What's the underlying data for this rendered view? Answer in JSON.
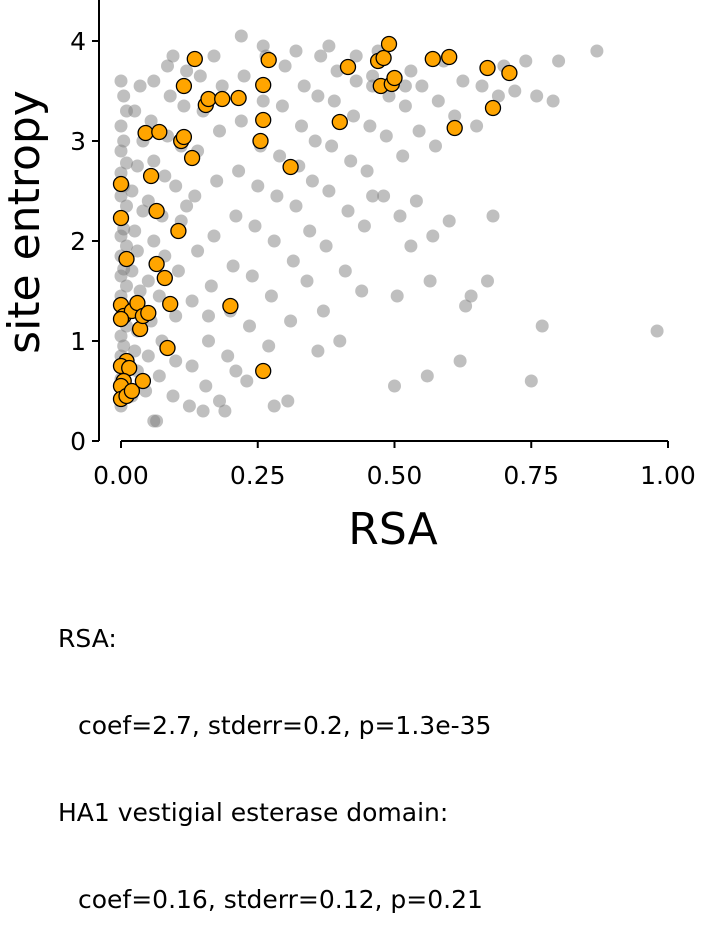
{
  "chart_data": {
    "type": "scatter",
    "xlabel": "RSA",
    "ylabel": "site entropy",
    "xlim": [
      -0.03,
      1.0
    ],
    "ylim": [
      0,
      4.45
    ],
    "xticks": [
      "0.00",
      "0.25",
      "0.50",
      "0.75",
      "1.00"
    ],
    "yticks": [
      "0",
      "1",
      "2",
      "3",
      "4"
    ],
    "grid": false,
    "legend": "none",
    "colors": {
      "gray": "#808080",
      "orange": "#FFA500",
      "orange_edge": "#000000"
    },
    "series": [
      {
        "color": "gray",
        "points": [
          [
            0.0,
            0.35
          ],
          [
            0.005,
            0.5
          ],
          [
            0.0,
            0.62
          ],
          [
            0.01,
            0.75
          ],
          [
            0.0,
            0.85
          ],
          [
            0.005,
            0.95
          ],
          [
            0.0,
            1.05
          ],
          [
            0.01,
            1.15
          ],
          [
            0.0,
            1.25
          ],
          [
            0.005,
            1.35
          ],
          [
            0.0,
            1.45
          ],
          [
            0.01,
            1.55
          ],
          [
            0.0,
            1.65
          ],
          [
            0.005,
            1.72
          ],
          [
            0.0,
            1.85
          ],
          [
            0.01,
            1.95
          ],
          [
            0.0,
            2.05
          ],
          [
            0.005,
            2.12
          ],
          [
            0.0,
            2.22
          ],
          [
            0.01,
            2.35
          ],
          [
            0.0,
            2.45
          ],
          [
            0.005,
            2.55
          ],
          [
            0.0,
            2.68
          ],
          [
            0.01,
            2.78
          ],
          [
            0.0,
            2.9
          ],
          [
            0.005,
            3.0
          ],
          [
            0.0,
            3.15
          ],
          [
            0.01,
            3.3
          ],
          [
            0.005,
            3.45
          ],
          [
            0.0,
            3.6
          ],
          [
            0.02,
            0.45
          ],
          [
            0.03,
            0.7
          ],
          [
            0.025,
            0.9
          ],
          [
            0.03,
            1.1
          ],
          [
            0.02,
            1.3
          ],
          [
            0.035,
            1.5
          ],
          [
            0.02,
            1.7
          ],
          [
            0.03,
            1.9
          ],
          [
            0.025,
            2.1
          ],
          [
            0.04,
            2.3
          ],
          [
            0.02,
            2.5
          ],
          [
            0.03,
            2.75
          ],
          [
            0.04,
            3.0
          ],
          [
            0.025,
            3.3
          ],
          [
            0.035,
            3.55
          ],
          [
            0.045,
            0.5
          ],
          [
            0.05,
            0.85
          ],
          [
            0.055,
            1.2
          ],
          [
            0.05,
            1.6
          ],
          [
            0.06,
            2.0
          ],
          [
            0.05,
            2.4
          ],
          [
            0.06,
            2.8
          ],
          [
            0.055,
            3.2
          ],
          [
            0.06,
            3.6
          ],
          [
            0.065,
            0.2
          ],
          [
            0.07,
            0.65
          ],
          [
            0.075,
            1.0
          ],
          [
            0.07,
            1.45
          ],
          [
            0.08,
            1.85
          ],
          [
            0.075,
            2.25
          ],
          [
            0.08,
            2.65
          ],
          [
            0.085,
            3.05
          ],
          [
            0.09,
            3.45
          ],
          [
            0.085,
            3.75
          ],
          [
            0.095,
            0.45
          ],
          [
            0.1,
            0.8
          ],
          [
            0.1,
            1.25
          ],
          [
            0.105,
            1.7
          ],
          [
            0.11,
            2.2
          ],
          [
            0.1,
            2.55
          ],
          [
            0.11,
            2.95
          ],
          [
            0.115,
            3.35
          ],
          [
            0.12,
            3.7
          ],
          [
            0.125,
            0.35
          ],
          [
            0.13,
            0.75
          ],
          [
            0.13,
            1.4
          ],
          [
            0.14,
            1.9
          ],
          [
            0.135,
            2.45
          ],
          [
            0.14,
            2.9
          ],
          [
            0.15,
            3.3
          ],
          [
            0.145,
            3.65
          ],
          [
            0.155,
            0.55
          ],
          [
            0.16,
            1.0
          ],
          [
            0.165,
            1.55
          ],
          [
            0.17,
            2.05
          ],
          [
            0.175,
            2.6
          ],
          [
            0.18,
            3.1
          ],
          [
            0.185,
            3.55
          ],
          [
            0.19,
            0.3
          ],
          [
            0.195,
            0.85
          ],
          [
            0.2,
            1.3
          ],
          [
            0.205,
            1.75
          ],
          [
            0.21,
            2.25
          ],
          [
            0.215,
            2.7
          ],
          [
            0.22,
            3.2
          ],
          [
            0.225,
            3.65
          ],
          [
            0.23,
            0.6
          ],
          [
            0.235,
            1.15
          ],
          [
            0.24,
            1.65
          ],
          [
            0.245,
            2.15
          ],
          [
            0.25,
            2.55
          ],
          [
            0.255,
            2.95
          ],
          [
            0.26,
            3.4
          ],
          [
            0.265,
            3.85
          ],
          [
            0.27,
            0.95
          ],
          [
            0.275,
            1.45
          ],
          [
            0.28,
            2.0
          ],
          [
            0.285,
            2.45
          ],
          [
            0.29,
            2.85
          ],
          [
            0.295,
            3.35
          ],
          [
            0.3,
            3.75
          ],
          [
            0.305,
            0.4
          ],
          [
            0.31,
            1.2
          ],
          [
            0.315,
            1.8
          ],
          [
            0.32,
            2.35
          ],
          [
            0.325,
            2.75
          ],
          [
            0.33,
            3.15
          ],
          [
            0.335,
            3.55
          ],
          [
            0.34,
            1.6
          ],
          [
            0.345,
            2.1
          ],
          [
            0.35,
            2.6
          ],
          [
            0.355,
            3.0
          ],
          [
            0.36,
            3.45
          ],
          [
            0.365,
            3.85
          ],
          [
            0.37,
            1.3
          ],
          [
            0.375,
            1.95
          ],
          [
            0.38,
            2.5
          ],
          [
            0.385,
            2.95
          ],
          [
            0.39,
            3.4
          ],
          [
            0.395,
            3.7
          ],
          [
            0.4,
            1.0
          ],
          [
            0.41,
            1.7
          ],
          [
            0.415,
            2.3
          ],
          [
            0.42,
            2.8
          ],
          [
            0.425,
            3.25
          ],
          [
            0.43,
            3.6
          ],
          [
            0.44,
            1.5
          ],
          [
            0.445,
            2.15
          ],
          [
            0.45,
            2.7
          ],
          [
            0.455,
            3.15
          ],
          [
            0.46,
            3.55
          ],
          [
            0.47,
            3.9
          ],
          [
            0.48,
            2.45
          ],
          [
            0.485,
            3.05
          ],
          [
            0.49,
            3.45
          ],
          [
            0.5,
            0.55
          ],
          [
            0.505,
            1.45
          ],
          [
            0.51,
            2.25
          ],
          [
            0.515,
            2.85
          ],
          [
            0.52,
            3.35
          ],
          [
            0.53,
            3.7
          ],
          [
            0.54,
            2.4
          ],
          [
            0.545,
            3.1
          ],
          [
            0.55,
            3.55
          ],
          [
            0.56,
            0.65
          ],
          [
            0.565,
            1.6
          ],
          [
            0.57,
            2.05
          ],
          [
            0.575,
            2.95
          ],
          [
            0.58,
            3.4
          ],
          [
            0.59,
            3.8
          ],
          [
            0.6,
            2.2
          ],
          [
            0.61,
            3.25
          ],
          [
            0.62,
            0.8
          ],
          [
            0.625,
            3.6
          ],
          [
            0.64,
            1.45
          ],
          [
            0.65,
            3.15
          ],
          [
            0.66,
            3.55
          ],
          [
            0.67,
            1.6
          ],
          [
            0.68,
            2.25
          ],
          [
            0.69,
            3.45
          ],
          [
            0.7,
            3.75
          ],
          [
            0.72,
            3.5
          ],
          [
            0.74,
            3.8
          ],
          [
            0.75,
            0.6
          ],
          [
            0.76,
            3.45
          ],
          [
            0.77,
            1.15
          ],
          [
            0.79,
            3.4
          ],
          [
            0.8,
            3.8
          ],
          [
            0.87,
            3.9
          ],
          [
            0.98,
            1.1
          ],
          [
            0.095,
            3.85
          ],
          [
            0.17,
            3.85
          ],
          [
            0.22,
            4.05
          ],
          [
            0.26,
            3.95
          ],
          [
            0.32,
            3.9
          ],
          [
            0.38,
            3.95
          ],
          [
            0.43,
            3.85
          ],
          [
            0.46,
            3.65
          ],
          [
            0.52,
            3.55
          ],
          [
            0.28,
            0.35
          ],
          [
            0.18,
            0.4
          ],
          [
            0.15,
            0.3
          ],
          [
            0.06,
            0.2
          ],
          [
            0.36,
            0.9
          ],
          [
            0.46,
            2.45
          ],
          [
            0.53,
            1.95
          ],
          [
            0.63,
            1.35
          ],
          [
            0.16,
            1.25
          ],
          [
            0.21,
            0.7
          ],
          [
            0.12,
            2.35
          ]
        ]
      },
      {
        "color": "orange",
        "points": [
          [
            0.0,
            2.57
          ],
          [
            0.0,
            2.23
          ],
          [
            0.01,
            1.82
          ],
          [
            0.0,
            1.36
          ],
          [
            0.005,
            1.25
          ],
          [
            0.02,
            1.3
          ],
          [
            0.0,
            1.22
          ],
          [
            0.01,
            0.8
          ],
          [
            0.0,
            0.75
          ],
          [
            0.015,
            0.73
          ],
          [
            0.005,
            0.6
          ],
          [
            0.0,
            0.55
          ],
          [
            0.0,
            0.42
          ],
          [
            0.01,
            0.45
          ],
          [
            0.02,
            0.5
          ],
          [
            0.03,
            1.38
          ],
          [
            0.035,
            1.12
          ],
          [
            0.04,
            1.25
          ],
          [
            0.04,
            0.6
          ],
          [
            0.05,
            1.28
          ],
          [
            0.065,
            1.77
          ],
          [
            0.065,
            2.3
          ],
          [
            0.055,
            2.65
          ],
          [
            0.045,
            3.08
          ],
          [
            0.07,
            3.09
          ],
          [
            0.08,
            1.63
          ],
          [
            0.085,
            0.93
          ],
          [
            0.09,
            1.37
          ],
          [
            0.105,
            2.1
          ],
          [
            0.11,
            3.0
          ],
          [
            0.115,
            3.04
          ],
          [
            0.13,
            2.83
          ],
          [
            0.115,
            3.55
          ],
          [
            0.135,
            3.82
          ],
          [
            0.155,
            3.36
          ],
          [
            0.16,
            3.42
          ],
          [
            0.185,
            3.42
          ],
          [
            0.215,
            3.43
          ],
          [
            0.2,
            1.35
          ],
          [
            0.255,
            3.0
          ],
          [
            0.26,
            3.21
          ],
          [
            0.26,
            3.56
          ],
          [
            0.26,
            0.7
          ],
          [
            0.27,
            3.81
          ],
          [
            0.31,
            2.74
          ],
          [
            0.4,
            3.19
          ],
          [
            0.415,
            3.74
          ],
          [
            0.47,
            3.8
          ],
          [
            0.475,
            3.55
          ],
          [
            0.48,
            3.83
          ],
          [
            0.495,
            3.57
          ],
          [
            0.49,
            3.97
          ],
          [
            0.5,
            3.63
          ],
          [
            0.57,
            3.82
          ],
          [
            0.6,
            3.84
          ],
          [
            0.61,
            3.13
          ],
          [
            0.67,
            3.73
          ],
          [
            0.68,
            3.33
          ],
          [
            0.71,
            3.68
          ]
        ]
      }
    ]
  },
  "stats": {
    "line1": "RSA:",
    "line2": "coef=2.7, stderr=0.2, p=1.3e-35",
    "line3": "HA1 vestigial esterase domain:",
    "line4": "coef=0.16, stderr=0.12, p=0.21"
  }
}
